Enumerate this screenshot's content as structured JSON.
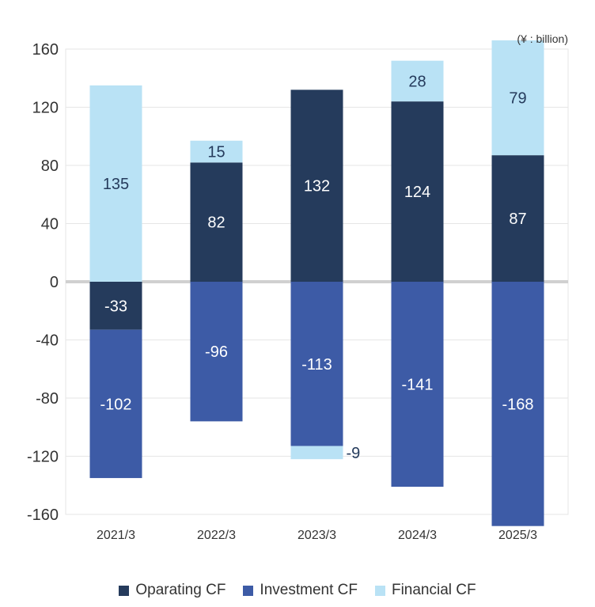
{
  "chart_data": {
    "type": "bar",
    "stacked": true,
    "unit_label": "(¥ : billion)",
    "categories": [
      "2021/3",
      "2022/3",
      "2023/3",
      "2024/3",
      "2025/3"
    ],
    "series": [
      {
        "name": "Oparating CF",
        "color": "#253B5C",
        "values": [
          -33,
          82,
          132,
          124,
          87
        ]
      },
      {
        "name": "Investment CF",
        "color": "#3D5BA6",
        "values": [
          -102,
          -96,
          -113,
          -141,
          -168
        ]
      },
      {
        "name": "Financial CF",
        "color": "#B9E2F5",
        "values": [
          135,
          15,
          -9,
          28,
          79
        ]
      }
    ],
    "label_colors": {
      "dark_bg": "#ffffff",
      "light_bg": "#253B5C"
    },
    "ylim": [
      -160,
      160
    ],
    "yticks": [
      160,
      120,
      80,
      40,
      0,
      -40,
      -80,
      -120,
      -160
    ],
    "grid": true,
    "legend_position": "bottom",
    "title": "",
    "xlabel": "",
    "ylabel": ""
  }
}
